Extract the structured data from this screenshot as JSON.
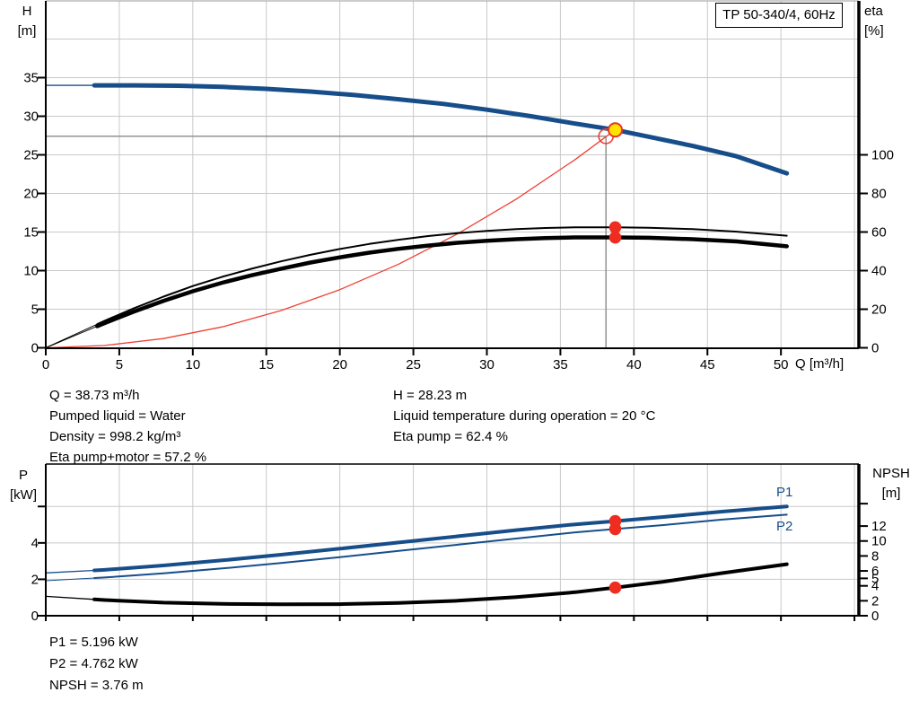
{
  "info_top": {
    "left": [
      "Q = 38.73 m³/h",
      "Pumped liquid = Water",
      "Density = 998.2 kg/m³",
      "Eta pump+motor = 57.2 %"
    ],
    "right": [
      "H = 28.23 m",
      "Liquid temperature during operation = 20 °C",
      "Eta pump = 62.4 %"
    ]
  },
  "info_bottom": [
    "P1 = 5.196 kW",
    "P2 = 4.762 kW",
    "NPSH = 3.76 m"
  ],
  "colors": {
    "curve_blue": "#174e8a",
    "curve_black": "#000000",
    "marker_red": "#ee2c20",
    "system_red": "#ef4135",
    "duty_yellow": "#ffe400",
    "crosshair_gray": "#8a8a8a",
    "grid_gray": "#c9c9c9"
  },
  "chart_data": [
    {
      "type": "line",
      "name": "performance-curve",
      "title": "TP 50-340/4, 60Hz",
      "x_label": "Q [m³/h]",
      "y_left_label": [
        "H",
        "[m]"
      ],
      "y_right_label": [
        "eta",
        "[%]"
      ],
      "x_range": [
        0,
        55.3
      ],
      "y_left_range": [
        0,
        45
      ],
      "y_right_range": [
        0,
        180
      ],
      "x_ticks": [
        0,
        5,
        10,
        15,
        20,
        25,
        30,
        35,
        40,
        45,
        50
      ],
      "show_x_tick_labels": true,
      "x_grid": [
        5,
        10,
        15,
        20,
        25,
        30,
        35,
        40,
        45,
        50,
        55
      ],
      "y_left_ticks": [
        0,
        5,
        10,
        15,
        20,
        25,
        30,
        35
      ],
      "y_left_ticks_unlabeled": [],
      "y_left_grid": [
        5,
        10,
        15,
        20,
        25,
        30,
        35,
        40
      ],
      "y_right_ticks": [
        0,
        20,
        40,
        60,
        80,
        100
      ],
      "y_right_ticks_unlabeled": [],
      "duty_point": {
        "Q": 38.73,
        "H": 28.23,
        "eta_pump": 62.4,
        "eta_pump_motor": 57.2
      },
      "crosshair": {
        "q": 38.1,
        "v": 27.4
      },
      "series": [
        {
          "name": "system-curve",
          "label": "",
          "axis": "left",
          "color": "#ef4135",
          "width": 1.3,
          "points": [
            [
              0,
              0
            ],
            [
              4,
              0.3
            ],
            [
              8,
              1.2
            ],
            [
              12,
              2.71
            ],
            [
              16,
              4.82
            ],
            [
              20,
              7.53
            ],
            [
              24,
              10.84
            ],
            [
              28,
              14.75
            ],
            [
              32,
              19.27
            ],
            [
              36,
              24.38
            ],
            [
              38.73,
              28.23
            ]
          ]
        },
        {
          "name": "eta-pump-motor-curve",
          "label": "",
          "axis": "right",
          "color": "#000000",
          "width": 4.5,
          "thin_width": 1,
          "thin_until": 3.5,
          "points": [
            [
              0,
              0
            ],
            [
              2,
              6.4
            ],
            [
              4,
              12.8
            ],
            [
              6,
              18.8
            ],
            [
              8,
              24.3
            ],
            [
              10,
              29.3
            ],
            [
              12,
              33.7
            ],
            [
              14,
              37.6
            ],
            [
              16,
              41
            ],
            [
              18,
              44.2
            ],
            [
              20,
              46.9
            ],
            [
              22,
              49.3
            ],
            [
              24,
              51.3
            ],
            [
              26,
              53
            ],
            [
              28,
              54.4
            ],
            [
              30,
              55.5
            ],
            [
              32,
              56.3
            ],
            [
              34,
              56.9
            ],
            [
              36,
              57.2
            ],
            [
              38.73,
              57.2
            ],
            [
              41,
              57
            ],
            [
              44,
              56.3
            ],
            [
              47,
              55.1
            ],
            [
              50.4,
              52.6
            ]
          ]
        },
        {
          "name": "eta-pump-curve",
          "label": "",
          "axis": "right",
          "color": "#000000",
          "width": 2,
          "thin_width": 1,
          "thin_until": 3.5,
          "points": [
            [
              0,
              0
            ],
            [
              2,
              7
            ],
            [
              4,
              14
            ],
            [
              6,
              20.5
            ],
            [
              8,
              26.5
            ],
            [
              10,
              32
            ],
            [
              12,
              36.8
            ],
            [
              14,
              41
            ],
            [
              16,
              44.8
            ],
            [
              18,
              48.2
            ],
            [
              20,
              51.2
            ],
            [
              22,
              53.8
            ],
            [
              24,
              56
            ],
            [
              26,
              57.9
            ],
            [
              28,
              59.4
            ],
            [
              30,
              60.6
            ],
            [
              32,
              61.5
            ],
            [
              34,
              62.1
            ],
            [
              36,
              62.4
            ],
            [
              38.73,
              62.4
            ],
            [
              41,
              62.2
            ],
            [
              44,
              61.5
            ],
            [
              47,
              60.2
            ],
            [
              50.4,
              58.1
            ]
          ]
        },
        {
          "name": "head-curve",
          "label": "",
          "axis": "left",
          "color": "#174e8a",
          "width": 5,
          "thin_width": 1.4,
          "thin_until": 3.3,
          "points": [
            [
              0,
              34
            ],
            [
              3,
              34
            ],
            [
              6,
              34
            ],
            [
              9,
              33.95
            ],
            [
              12,
              33.8
            ],
            [
              15,
              33.55
            ],
            [
              18,
              33.2
            ],
            [
              21,
              32.75
            ],
            [
              24,
              32.2
            ],
            [
              27,
              31.6
            ],
            [
              30,
              30.85
            ],
            [
              33,
              30
            ],
            [
              36,
              29.05
            ],
            [
              38.73,
              28.23
            ],
            [
              41,
              27.35
            ],
            [
              44,
              26.15
            ],
            [
              47,
              24.8
            ],
            [
              50.4,
              22.6
            ]
          ]
        }
      ],
      "markers": [
        {
          "name": "requested-duty-circle",
          "axis": "left",
          "q": 38.1,
          "v": 27.4,
          "r": 8,
          "fill": "none",
          "stroke": "#ef4135",
          "sw": 1.6
        },
        {
          "name": "duty-point-yellow",
          "axis": "left",
          "q": 38.73,
          "v": 28.23,
          "r": 7.5,
          "fill": "#ffe400",
          "stroke": "#e8362a",
          "sw": 2
        },
        {
          "name": "eta-pump-dot",
          "axis": "right",
          "q": 38.73,
          "v": 62.4,
          "r": 6.8,
          "fill": "#ee2c20",
          "stroke": "none",
          "sw": 0
        },
        {
          "name": "eta-pump-motor-dot",
          "axis": "right",
          "q": 38.73,
          "v": 57.2,
          "r": 6.8,
          "fill": "#ee2c20",
          "stroke": "none",
          "sw": 0
        }
      ]
    },
    {
      "type": "line",
      "name": "power-npsh-curve",
      "title": "",
      "x_label": "",
      "y_left_label": [
        "P",
        "[kW]"
      ],
      "y_right_label": [
        "NPSH",
        "[m]"
      ],
      "x_range": [
        0,
        55.3
      ],
      "y_left_range": [
        0,
        8.33
      ],
      "y_right_range": [
        0,
        20.3
      ],
      "x_ticks": [
        0,
        5,
        10,
        15,
        20,
        25,
        30,
        35,
        40,
        45,
        50,
        55
      ],
      "show_x_tick_labels": false,
      "x_grid": [
        5,
        10,
        15,
        20,
        25,
        30,
        35,
        40,
        45,
        50,
        55
      ],
      "y_left_ticks": [
        0,
        2,
        4
      ],
      "y_left_ticks_unlabeled": [
        6
      ],
      "y_left_grid": [
        2,
        4,
        6
      ],
      "y_right_ticks": [
        0,
        2,
        4,
        5,
        6,
        8,
        10,
        12
      ],
      "y_right_ticks_unlabeled": [
        15
      ],
      "duty_point": {
        "Q": 38.73,
        "P1": 5.196,
        "P2": 4.762,
        "NPSH": 3.76
      },
      "series": [
        {
          "name": "p1-curve",
          "label": "P1",
          "axis": "left",
          "color": "#174e8a",
          "width": 4,
          "thin_width": 1.3,
          "thin_until": 3.3,
          "points": [
            [
              0,
              2.35
            ],
            [
              4,
              2.52
            ],
            [
              8,
              2.76
            ],
            [
              12,
              3.04
            ],
            [
              16,
              3.35
            ],
            [
              20,
              3.68
            ],
            [
              24,
              4.02
            ],
            [
              28,
              4.36
            ],
            [
              32,
              4.7
            ],
            [
              36,
              5.02
            ],
            [
              38.73,
              5.196
            ],
            [
              42,
              5.42
            ],
            [
              46,
              5.72
            ],
            [
              50.4,
              6.0
            ]
          ]
        },
        {
          "name": "p2-curve",
          "label": "P2",
          "axis": "left",
          "color": "#174e8a",
          "width": 2,
          "thin_width": 1.1,
          "thin_until": 3.3,
          "points": [
            [
              0,
              1.92
            ],
            [
              4,
              2.1
            ],
            [
              8,
              2.33
            ],
            [
              12,
              2.6
            ],
            [
              16,
              2.9
            ],
            [
              20,
              3.22
            ],
            [
              24,
              3.56
            ],
            [
              28,
              3.9
            ],
            [
              32,
              4.24
            ],
            [
              36,
              4.58
            ],
            [
              38.73,
              4.762
            ],
            [
              42,
              4.98
            ],
            [
              46,
              5.28
            ],
            [
              50.4,
              5.55
            ]
          ]
        },
        {
          "name": "npsh-curve",
          "label": "",
          "axis": "right",
          "color": "#000000",
          "width": 4,
          "thin_width": 1.3,
          "thin_until": 3.3,
          "points": [
            [
              0,
              2.6
            ],
            [
              4,
              2.1
            ],
            [
              8,
              1.75
            ],
            [
              12,
              1.58
            ],
            [
              16,
              1.52
            ],
            [
              20,
              1.55
            ],
            [
              24,
              1.7
            ],
            [
              28,
              2.0
            ],
            [
              32,
              2.5
            ],
            [
              36,
              3.15
            ],
            [
              38.73,
              3.76
            ],
            [
              42,
              4.55
            ],
            [
              46,
              5.7
            ],
            [
              50.4,
              6.9
            ]
          ]
        }
      ],
      "markers": [
        {
          "name": "p1-dot",
          "axis": "left",
          "q": 38.73,
          "v": 5.196,
          "r": 6.8,
          "fill": "#ee2c20",
          "stroke": "none",
          "sw": 0
        },
        {
          "name": "p2-dot",
          "axis": "left",
          "q": 38.73,
          "v": 4.762,
          "r": 6.8,
          "fill": "#ee2c20",
          "stroke": "none",
          "sw": 0
        },
        {
          "name": "npsh-dot",
          "axis": "right",
          "q": 38.73,
          "v": 3.76,
          "r": 6.8,
          "fill": "#ee2c20",
          "stroke": "none",
          "sw": 0
        }
      ]
    }
  ]
}
